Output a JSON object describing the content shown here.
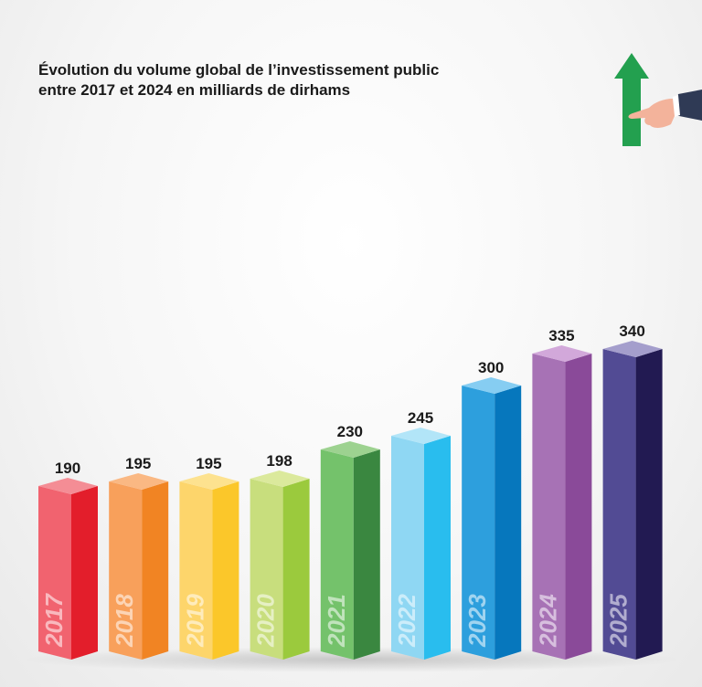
{
  "chart_data": {
    "type": "bar",
    "title_lines": [
      "Évolution du volume global de l’investissement public",
      "entre 2017 et 2024 en milliards de dirhams"
    ],
    "categories": [
      "2017",
      "2018",
      "2019",
      "2020",
      "2021",
      "2022",
      "2023",
      "2024",
      "2025"
    ],
    "values": [
      190,
      195,
      195,
      198,
      230,
      245,
      300,
      335,
      340
    ],
    "value_labels": [
      "190",
      "195",
      "195",
      "198",
      "230",
      "245",
      "300",
      "335",
      "340"
    ],
    "xlabel": "",
    "ylabel": "",
    "legend": "none",
    "grid": false,
    "style": "3d-bars",
    "colors": [
      {
        "front": "#f1636f",
        "side": "#e31e2b",
        "top": "#f48d95"
      },
      {
        "front": "#f8a05b",
        "side": "#f18423",
        "top": "#fab883"
      },
      {
        "front": "#fdd56b",
        "side": "#fbc72a",
        "top": "#fde28f"
      },
      {
        "front": "#c8de7d",
        "side": "#9bca3d",
        "top": "#dbe99c"
      },
      {
        "front": "#74c26b",
        "side": "#3a8740",
        "top": "#9dd290"
      },
      {
        "front": "#8fd7f3",
        "side": "#29bdee",
        "top": "#b2e5f8"
      },
      {
        "front": "#2d9fdd",
        "side": "#0677bd",
        "top": "#86cdf2"
      },
      {
        "front": "#a772b5",
        "side": "#8a4a99",
        "top": "#d2a8da"
      },
      {
        "front": "#524b94",
        "side": "#221a52",
        "top": "#a49ecc"
      }
    ]
  },
  "decor": {
    "arrow_icon": "green-up-arrow",
    "hand_icon": "pointing-hand"
  }
}
